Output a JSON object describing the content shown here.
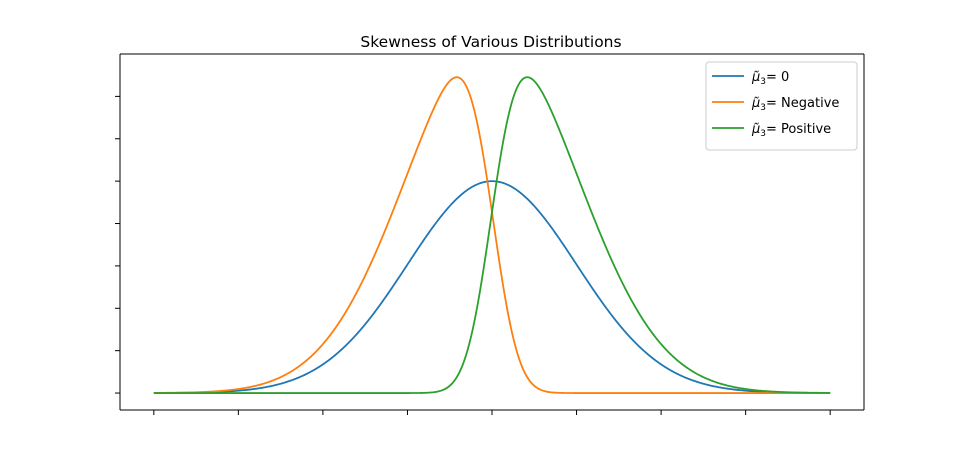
{
  "chart_data": {
    "type": "line",
    "title": "Skewness of Various Distributions",
    "xlabel": "",
    "ylabel": "",
    "x_range": [
      -4,
      4
    ],
    "xlim": [
      -4.4,
      4.4
    ],
    "ylim": [
      -0.04,
      0.8
    ],
    "x_ticks": [
      -4,
      -3,
      -2,
      -1,
      0,
      1,
      2,
      3,
      4
    ],
    "y_ticks": [
      0.0,
      0.1,
      0.2,
      0.3,
      0.4,
      0.5,
      0.6,
      0.7
    ],
    "tick_labels_visible": false,
    "grid": false,
    "legend_position": "top-right",
    "series": [
      {
        "name_symbol": "μ̃",
        "name_subscript": "3",
        "name_suffix": "=  0",
        "color": "#1f77b4",
        "shape": "normal",
        "mode": 0.0,
        "peak": 0.5,
        "x": [
          -4,
          -3,
          -2.5,
          -2,
          -1.5,
          -1,
          -0.5,
          0,
          0.5,
          1,
          1.5,
          2,
          2.5,
          3,
          4
        ],
        "y": [
          0.0002,
          0.0055,
          0.0219,
          0.0677,
          0.1623,
          0.3033,
          0.4413,
          0.5,
          0.4413,
          0.3033,
          0.1623,
          0.0677,
          0.0219,
          0.0055,
          0.0002
        ]
      },
      {
        "name_symbol": "μ̃",
        "name_subscript": "3",
        "name_suffix": "=  Negative",
        "color": "#ff7f0e",
        "shape": "skewed",
        "alpha": -4,
        "mode": -0.43,
        "peak": 0.745,
        "x": [
          -4,
          -3,
          -2.5,
          -2,
          -1.5,
          -1,
          -0.5,
          -0.43,
          0,
          0.5,
          0.8,
          1,
          2,
          4
        ],
        "y": [
          0.0003,
          0.0109,
          0.0437,
          0.1342,
          0.3205,
          0.5614,
          0.7373,
          0.744,
          0.4,
          0.0742,
          0.0096,
          0.0015,
          0.0,
          0.0
        ]
      },
      {
        "name_symbol": "μ̃",
        "name_subscript": "3",
        "name_suffix": "=  Positive",
        "color": "#2ca02c",
        "shape": "skewed",
        "alpha": 4,
        "mode": 0.43,
        "peak": 0.745,
        "x": [
          -4,
          -2,
          -1,
          -0.8,
          -0.5,
          0,
          0.43,
          0.5,
          1,
          1.5,
          2,
          2.5,
          3,
          4
        ],
        "y": [
          0.0,
          0.0,
          0.0015,
          0.0096,
          0.0742,
          0.4,
          0.744,
          0.7373,
          0.5614,
          0.3205,
          0.1342,
          0.0437,
          0.0109,
          0.0003
        ]
      }
    ]
  }
}
